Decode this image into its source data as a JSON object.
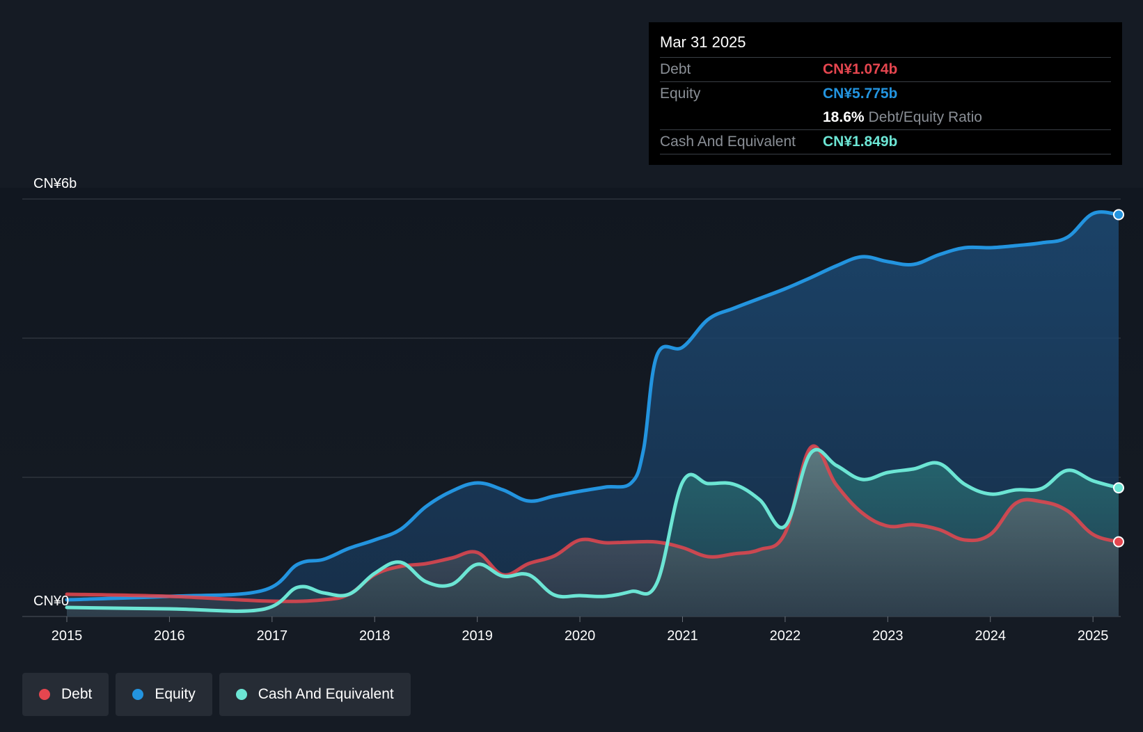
{
  "colors": {
    "debt": "#e5464f",
    "equity": "#2394df",
    "cash": "#6ce5d4",
    "grid": "#3b414a",
    "background": "#151b24"
  },
  "tooltip": {
    "date": "Mar 31 2025",
    "debt_label": "Debt",
    "debt_value": "CN¥1.074b",
    "equity_label": "Equity",
    "equity_value": "CN¥5.775b",
    "ratio_value": "18.6%",
    "ratio_label": "Debt/Equity Ratio",
    "cash_label": "Cash And Equivalent",
    "cash_value": "CN¥1.849b"
  },
  "legend": [
    {
      "label": "Debt",
      "color": "#e5464f"
    },
    {
      "label": "Equity",
      "color": "#2394df"
    },
    {
      "label": "Cash And Equivalent",
      "color": "#6ce5d4"
    }
  ],
  "chart_data": {
    "type": "area",
    "title": "",
    "xlabel": "",
    "ylabel": "",
    "unit": "CN¥ billions",
    "x_range": [
      2015.0,
      2025.25
    ],
    "ylim": [
      0,
      6
    ],
    "y_tick_labels": [
      {
        "value": 6,
        "label": "CN¥6b"
      },
      {
        "value": 0,
        "label": "CN¥0"
      }
    ],
    "y_gridlines": [
      0,
      2,
      4,
      6
    ],
    "x_tick_labels": [
      {
        "value": 2015,
        "label": "2015"
      },
      {
        "value": 2016,
        "label": "2016"
      },
      {
        "value": 2017,
        "label": "2017"
      },
      {
        "value": 2018,
        "label": "2018"
      },
      {
        "value": 2019,
        "label": "2019"
      },
      {
        "value": 2020,
        "label": "2020"
      },
      {
        "value": 2021,
        "label": "2021"
      },
      {
        "value": 2022,
        "label": "2022"
      },
      {
        "value": 2023,
        "label": "2023"
      },
      {
        "value": 2024,
        "label": "2024"
      },
      {
        "value": 2025,
        "label": "2025"
      }
    ],
    "series": [
      {
        "name": "Equity",
        "color": "#2394df",
        "points": [
          [
            2015.0,
            0.24
          ],
          [
            2016.0,
            0.29
          ],
          [
            2016.9,
            0.37
          ],
          [
            2017.25,
            0.75
          ],
          [
            2017.5,
            0.82
          ],
          [
            2017.75,
            0.98
          ],
          [
            2018.0,
            1.1
          ],
          [
            2018.25,
            1.25
          ],
          [
            2018.5,
            1.58
          ],
          [
            2018.75,
            1.8
          ],
          [
            2019.0,
            1.92
          ],
          [
            2019.25,
            1.82
          ],
          [
            2019.5,
            1.66
          ],
          [
            2019.75,
            1.73
          ],
          [
            2020.0,
            1.8
          ],
          [
            2020.25,
            1.86
          ],
          [
            2020.5,
            1.92
          ],
          [
            2020.62,
            2.4
          ],
          [
            2020.75,
            3.75
          ],
          [
            2021.0,
            3.87
          ],
          [
            2021.25,
            4.27
          ],
          [
            2021.5,
            4.43
          ],
          [
            2021.75,
            4.57
          ],
          [
            2022.0,
            4.71
          ],
          [
            2022.25,
            4.87
          ],
          [
            2022.5,
            5.04
          ],
          [
            2022.75,
            5.17
          ],
          [
            2023.0,
            5.1
          ],
          [
            2023.25,
            5.06
          ],
          [
            2023.5,
            5.2
          ],
          [
            2023.75,
            5.3
          ],
          [
            2024.0,
            5.3
          ],
          [
            2024.25,
            5.33
          ],
          [
            2024.5,
            5.37
          ],
          [
            2024.75,
            5.45
          ],
          [
            2025.0,
            5.79
          ],
          [
            2025.25,
            5.775
          ]
        ]
      },
      {
        "name": "Cash And Equivalent",
        "color": "#6ce5d4",
        "points": [
          [
            2015.0,
            0.13
          ],
          [
            2016.0,
            0.11
          ],
          [
            2016.9,
            0.1
          ],
          [
            2017.25,
            0.42
          ],
          [
            2017.5,
            0.34
          ],
          [
            2017.75,
            0.32
          ],
          [
            2018.0,
            0.62
          ],
          [
            2018.25,
            0.78
          ],
          [
            2018.5,
            0.5
          ],
          [
            2018.75,
            0.46
          ],
          [
            2019.0,
            0.75
          ],
          [
            2019.25,
            0.58
          ],
          [
            2019.5,
            0.6
          ],
          [
            2019.75,
            0.31
          ],
          [
            2020.0,
            0.3
          ],
          [
            2020.25,
            0.29
          ],
          [
            2020.5,
            0.36
          ],
          [
            2020.75,
            0.48
          ],
          [
            2021.0,
            1.93
          ],
          [
            2021.25,
            1.91
          ],
          [
            2021.5,
            1.9
          ],
          [
            2021.75,
            1.68
          ],
          [
            2022.0,
            1.3
          ],
          [
            2022.25,
            2.35
          ],
          [
            2022.5,
            2.17
          ],
          [
            2022.75,
            1.97
          ],
          [
            2023.0,
            2.07
          ],
          [
            2023.25,
            2.12
          ],
          [
            2023.5,
            2.2
          ],
          [
            2023.75,
            1.9
          ],
          [
            2024.0,
            1.76
          ],
          [
            2024.25,
            1.82
          ],
          [
            2024.5,
            1.84
          ],
          [
            2024.75,
            2.1
          ],
          [
            2025.0,
            1.95
          ],
          [
            2025.25,
            1.849
          ]
        ]
      },
      {
        "name": "Debt",
        "color": "#e5464f",
        "points": [
          [
            2015.0,
            0.32
          ],
          [
            2016.0,
            0.29
          ],
          [
            2017.0,
            0.22
          ],
          [
            2017.5,
            0.24
          ],
          [
            2017.75,
            0.32
          ],
          [
            2018.0,
            0.6
          ],
          [
            2018.25,
            0.72
          ],
          [
            2018.5,
            0.76
          ],
          [
            2018.75,
            0.84
          ],
          [
            2019.0,
            0.92
          ],
          [
            2019.25,
            0.6
          ],
          [
            2019.5,
            0.76
          ],
          [
            2019.75,
            0.87
          ],
          [
            2020.0,
            1.1
          ],
          [
            2020.25,
            1.06
          ],
          [
            2020.5,
            1.07
          ],
          [
            2020.75,
            1.07
          ],
          [
            2021.0,
            0.99
          ],
          [
            2021.25,
            0.86
          ],
          [
            2021.5,
            0.9
          ],
          [
            2021.75,
            0.96
          ],
          [
            2022.0,
            1.2
          ],
          [
            2022.25,
            2.43
          ],
          [
            2022.5,
            1.89
          ],
          [
            2022.75,
            1.49
          ],
          [
            2023.0,
            1.3
          ],
          [
            2023.25,
            1.32
          ],
          [
            2023.5,
            1.25
          ],
          [
            2023.75,
            1.1
          ],
          [
            2024.0,
            1.18
          ],
          [
            2024.25,
            1.63
          ],
          [
            2024.5,
            1.65
          ],
          [
            2024.75,
            1.52
          ],
          [
            2025.0,
            1.18
          ],
          [
            2025.25,
            1.074
          ]
        ]
      }
    ]
  }
}
